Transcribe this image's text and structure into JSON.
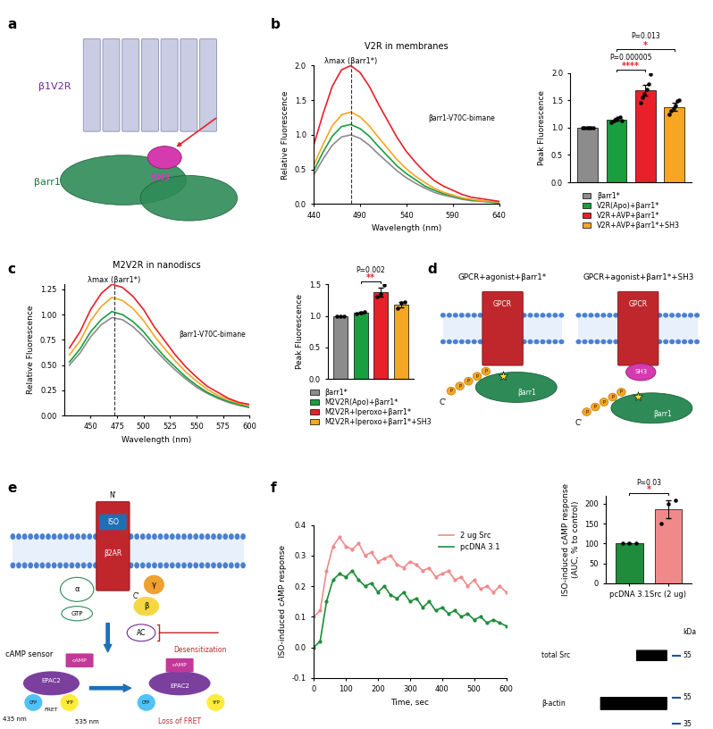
{
  "panel_labels": [
    "a",
    "b",
    "c",
    "d",
    "e",
    "f"
  ],
  "chart_data": [
    {
      "type": "line",
      "title": "V2R in membranes",
      "x_label": "Wavelength (nm)",
      "y_label": "Relative Fluorescence",
      "x": [
        440,
        450,
        460,
        470,
        480,
        490,
        500,
        510,
        520,
        530,
        540,
        550,
        560,
        570,
        580,
        590,
        600,
        610,
        620,
        630,
        640
      ],
      "xlim": [
        440,
        640
      ],
      "xticks": [
        440,
        490,
        540,
        590,
        640
      ],
      "ylim": [
        0.0,
        2.0
      ],
      "yticks": [
        0.0,
        0.5,
        1.0,
        1.5,
        2.0
      ],
      "vline": {
        "x": 480,
        "label": "λmax (βarr1*)"
      },
      "inset_label": "βarr1-V70C-bimane",
      "series": [
        {
          "color": "#8c8c8c",
          "values": [
            0.42,
            0.65,
            0.85,
            0.97,
            1.0,
            0.95,
            0.85,
            0.72,
            0.6,
            0.48,
            0.38,
            0.3,
            0.23,
            0.17,
            0.13,
            0.1,
            0.07,
            0.05,
            0.04,
            0.03,
            0.02
          ]
        },
        {
          "color": "#1a9e3f",
          "values": [
            0.48,
            0.75,
            0.98,
            1.12,
            1.15,
            1.09,
            0.98,
            0.83,
            0.69,
            0.55,
            0.44,
            0.35,
            0.26,
            0.2,
            0.15,
            0.12,
            0.08,
            0.06,
            0.05,
            0.03,
            0.02
          ]
        },
        {
          "color": "#f5a623",
          "values": [
            0.56,
            0.86,
            1.13,
            1.29,
            1.33,
            1.26,
            1.13,
            0.96,
            0.8,
            0.64,
            0.51,
            0.4,
            0.31,
            0.23,
            0.17,
            0.13,
            0.09,
            0.07,
            0.05,
            0.04,
            0.03
          ]
        },
        {
          "color": "#e8202a",
          "values": [
            0.85,
            1.3,
            1.7,
            1.94,
            2.0,
            1.9,
            1.7,
            1.44,
            1.2,
            0.96,
            0.76,
            0.6,
            0.46,
            0.34,
            0.26,
            0.2,
            0.14,
            0.1,
            0.08,
            0.06,
            0.04
          ]
        }
      ]
    },
    {
      "type": "bar",
      "y_label": "Peak Fluorescence",
      "categories": [
        "βarr1*",
        "V2R(Apo)+βarr1*",
        "V2R+AVP+βarr1*",
        "V2R+AVP+βarr1*+SH3"
      ],
      "values": [
        1.0,
        1.15,
        1.68,
        1.38
      ],
      "errors": [
        0,
        0.03,
        0.1,
        0.07
      ],
      "points": [
        [
          1,
          1,
          1,
          1,
          1,
          1
        ],
        [
          1.1,
          1.12,
          1.15,
          1.18,
          1.2,
          1.13
        ],
        [
          1.45,
          1.55,
          1.62,
          1.7,
          1.8,
          1.97
        ],
        [
          1.25,
          1.3,
          1.35,
          1.4,
          1.48,
          1.5
        ]
      ],
      "colors": [
        "#8c8c8c",
        "#1a9e3f",
        "#e8202a",
        "#f5a623"
      ],
      "ylim": [
        0.0,
        2.0
      ],
      "yticks": [
        0.0,
        0.5,
        1.0,
        1.5,
        2.0
      ],
      "tick_labels": "y",
      "legend": "upper center",
      "comparisons": [
        {
          "between": [
            1,
            2
          ],
          "p": "P=0.000005",
          "stars": "****"
        },
        {
          "between": [
            1,
            3
          ],
          "p": "P=0.013",
          "stars": "*"
        }
      ]
    },
    {
      "type": "line",
      "title": "M2V2R in nanodiscs",
      "x_label": "Wavelength (nm)",
      "y_label": "Relative Fluorescence",
      "x": [
        430,
        440,
        450,
        460,
        470,
        480,
        490,
        500,
        510,
        520,
        530,
        540,
        550,
        560,
        570,
        580,
        590,
        600
      ],
      "xlim": [
        425,
        600
      ],
      "xticks": [
        450,
        475,
        500,
        525,
        550,
        575,
        600
      ],
      "ylim": [
        0.0,
        1.3
      ],
      "yticks": [
        {
          "value": 0,
          "label": "0.00"
        },
        0.25,
        {
          "value": 0.5,
          "label": "0.50"
        },
        0.75,
        {
          "value": 1,
          "label": "1.00"
        },
        1.25
      ],
      "vline": {
        "x": 472,
        "label": "λmax (βarr1*)"
      },
      "inset_label": "βarr1-V70C-bimane",
      "series": [
        {
          "color": "#8c8c8c",
          "values": [
            0.5,
            0.62,
            0.78,
            0.9,
            0.97,
            0.95,
            0.88,
            0.78,
            0.66,
            0.55,
            0.45,
            0.36,
            0.28,
            0.22,
            0.17,
            0.13,
            0.1,
            0.08
          ]
        },
        {
          "color": "#1a9e3f",
          "values": [
            0.53,
            0.66,
            0.83,
            0.95,
            1.03,
            1.0,
            0.93,
            0.83,
            0.7,
            0.58,
            0.48,
            0.38,
            0.3,
            0.23,
            0.18,
            0.14,
            0.11,
            0.08
          ]
        },
        {
          "color": "#f5a623",
          "values": [
            0.6,
            0.74,
            0.94,
            1.08,
            1.17,
            1.14,
            1.06,
            0.94,
            0.79,
            0.66,
            0.54,
            0.43,
            0.34,
            0.26,
            0.2,
            0.16,
            0.12,
            0.1
          ]
        },
        {
          "color": "#e8202a",
          "values": [
            0.67,
            0.83,
            1.05,
            1.21,
            1.3,
            1.27,
            1.18,
            1.05,
            0.88,
            0.74,
            0.6,
            0.48,
            0.38,
            0.29,
            0.23,
            0.17,
            0.13,
            0.11
          ]
        }
      ]
    },
    {
      "type": "bar",
      "y_label": "Peak Fluorescence",
      "categories": [
        "βarr1*",
        "M2V2R(Apo)+βarr1*",
        "M2V2R+Iperoxo+βarr1*",
        "M2V2R+Iperoxo+βarr1*+SH3"
      ],
      "values": [
        1.0,
        1.05,
        1.38,
        1.18
      ],
      "errors": [
        0,
        0.02,
        0.07,
        0.04
      ],
      "points": [
        [
          1,
          1,
          1
        ],
        [
          1.03,
          1.05,
          1.07
        ],
        [
          1.3,
          1.35,
          1.49
        ],
        [
          1.12,
          1.2,
          1.22
        ]
      ],
      "colors": [
        "#8c8c8c",
        "#1a9e3f",
        "#e8202a",
        "#f5a623"
      ],
      "ylim": [
        0.0,
        1.5
      ],
      "yticks": [
        0.0,
        0.5,
        1.0,
        1.5
      ],
      "tick_labels": "y",
      "legend": "upper center",
      "comparisons": [
        {
          "between": [
            1,
            2
          ],
          "p": "P=0.002",
          "stars": "**"
        }
      ]
    },
    {
      "type": "line",
      "x_label": "Time, sec",
      "y_label": "ISO-induced cAMP response",
      "x": [
        0,
        20,
        40,
        60,
        80,
        100,
        120,
        140,
        160,
        180,
        200,
        220,
        240,
        260,
        280,
        300,
        320,
        340,
        360,
        380,
        400,
        420,
        440,
        460,
        480,
        500,
        520,
        540,
        560,
        580,
        600
      ],
      "xlim": [
        0,
        600
      ],
      "xticks": [
        0,
        100,
        200,
        300,
        400,
        500,
        600
      ],
      "ylim": [
        -0.1,
        0.4
      ],
      "yticks": [
        -0.1,
        0.0,
        0.1,
        0.2,
        0.3,
        0.4
      ],
      "legend": "upper right",
      "series": [
        {
          "name": "2 ug Src",
          "color": "#f08a8a",
          "marker": "o",
          "values": [
            0.1,
            0.12,
            0.25,
            0.33,
            0.36,
            0.33,
            0.32,
            0.34,
            0.3,
            0.31,
            0.28,
            0.29,
            0.3,
            0.27,
            0.26,
            0.28,
            0.27,
            0.25,
            0.26,
            0.23,
            0.24,
            0.25,
            0.22,
            0.23,
            0.2,
            0.22,
            0.19,
            0.2,
            0.18,
            0.2,
            0.18
          ]
        },
        {
          "name": "pcDNA 3.1",
          "color": "#1e8c3a",
          "marker": "o",
          "values": [
            0.0,
            0.02,
            0.15,
            0.22,
            0.24,
            0.23,
            0.25,
            0.22,
            0.2,
            0.21,
            0.18,
            0.2,
            0.17,
            0.16,
            0.18,
            0.15,
            0.16,
            0.13,
            0.15,
            0.12,
            0.13,
            0.11,
            0.12,
            0.1,
            0.11,
            0.09,
            0.1,
            0.08,
            0.09,
            0.08,
            0.07
          ]
        }
      ]
    },
    {
      "type": "bar",
      "y_label": "ISO-induced cAMP response\n(AUC, % to control)",
      "categories": [
        "pcDNA 3.1",
        "Src (2 ug)"
      ],
      "values": [
        100,
        186
      ],
      "errors": [
        0,
        22
      ],
      "points": [
        [
          100,
          100,
          100
        ],
        [
          150,
          200,
          208
        ]
      ],
      "colors": [
        "#1e8c3a",
        "#f08a8a"
      ],
      "ylim": [
        0,
        220
      ],
      "yticks": [
        0,
        50,
        100,
        150,
        200
      ],
      "comparisons": [
        {
          "between": [
            0,
            1
          ],
          "p": "P=0.03",
          "stars": "*"
        }
      ]
    }
  ],
  "diagrams": {
    "a": {
      "receptor": "β1V2R",
      "arrestin": "βarr1",
      "sh3": "SH3"
    },
    "d": {
      "left_title": "GPCR+agonist+βarr1*",
      "right_title": "GPCR+agonist+βarr1*+SH3",
      "receptor": "GPCR",
      "sh3": "SH3",
      "arrestin": "βarr1",
      "c_term": "C'",
      "phospho": "P"
    },
    "e": {
      "ligand": "ISO",
      "receptor": "β2AR",
      "n_term": "N'",
      "c_term": "C'",
      "g_alpha": "α",
      "g_gamma": "γ",
      "g_beta": "β",
      "gtp": "GTP",
      "ac": "AC",
      "camp": "cAMP",
      "desensitization": "Desensitization",
      "sensor": "cAMP sensor",
      "excitation": "435 nm",
      "emission": "535 nm",
      "epac": "EPAC2",
      "cfp": "CFP",
      "yfp": "YFP",
      "fret": "FRET",
      "loss": "Loss of FRET"
    },
    "blot": {
      "unit": "kDa",
      "rows": [
        {
          "label": "total Src",
          "markers": [
            55
          ]
        },
        {
          "label": "β-actin",
          "markers": [
            55,
            35
          ]
        }
      ]
    }
  }
}
